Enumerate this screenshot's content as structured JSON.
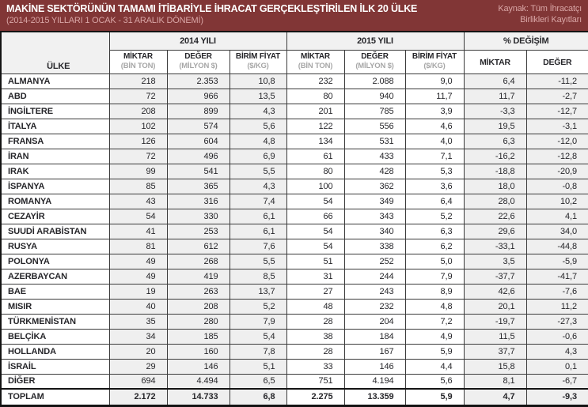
{
  "colors": {
    "banner_bg": "#813636",
    "banner_text": "#ffffff",
    "banner_muted": "#d9a6a6",
    "shaded_column_bg": "#efefef",
    "group_header_bg": "#f1f1f1",
    "border": "#3b3b3b",
    "text": "#26262a",
    "unit_text": "#a7a7a7"
  },
  "banner": {
    "title": "MAKİNE SEKTÖRÜNÜN TAMAMI İTİBARİYLE İHRACAT GERÇEKLEŞTİRİLEN İLK 20 ÜLKE",
    "subtitle": "(2014-2015 YILLARI 1 OCAK - 31 ARALIK DÖNEMİ)",
    "source_line1": "Kaynak: Tüm İhracatçı",
    "source_line2": "Birlikleri Kayıtları"
  },
  "table": {
    "country_header": "ÜLKE",
    "group_headers": [
      "2014 YILI",
      "2015 YILI",
      "% DEĞİŞİM"
    ],
    "sub_headers": [
      {
        "label": "MİKTAR",
        "unit": "(BİN TON)"
      },
      {
        "label": "DEĞER",
        "unit": "(MİLYON $)"
      },
      {
        "label": "BİRİM FİYAT",
        "unit": "($/KG)"
      }
    ],
    "pct_sub_headers": [
      "MİKTAR",
      "DEĞER"
    ],
    "rows": [
      [
        "ALMANYA",
        "218",
        "2.353",
        "10,8",
        "232",
        "2.088",
        "9,0",
        "6,4",
        "-11,2"
      ],
      [
        "ABD",
        "72",
        "966",
        "13,5",
        "80",
        "940",
        "11,7",
        "11,7",
        "-2,7"
      ],
      [
        "İNGİLTERE",
        "208",
        "899",
        "4,3",
        "201",
        "785",
        "3,9",
        "-3,3",
        "-12,7"
      ],
      [
        "İTALYA",
        "102",
        "574",
        "5,6",
        "122",
        "556",
        "4,6",
        "19,5",
        "-3,1"
      ],
      [
        "FRANSA",
        "126",
        "604",
        "4,8",
        "134",
        "531",
        "4,0",
        "6,3",
        "-12,0"
      ],
      [
        "İRAN",
        "72",
        "496",
        "6,9",
        "61",
        "433",
        "7,1",
        "-16,2",
        "-12,8"
      ],
      [
        "IRAK",
        "99",
        "541",
        "5,5",
        "80",
        "428",
        "5,3",
        "-18,8",
        "-20,9"
      ],
      [
        "İSPANYA",
        "85",
        "365",
        "4,3",
        "100",
        "362",
        "3,6",
        "18,0",
        "-0,8"
      ],
      [
        "ROMANYA",
        "43",
        "316",
        "7,4",
        "54",
        "349",
        "6,4",
        "28,0",
        "10,2"
      ],
      [
        "CEZAYİR",
        "54",
        "330",
        "6,1",
        "66",
        "343",
        "5,2",
        "22,6",
        "4,1"
      ],
      [
        "SUUDİ ARABİSTAN",
        "41",
        "253",
        "6,1",
        "54",
        "340",
        "6,3",
        "29,6",
        "34,0"
      ],
      [
        "RUSYA",
        "81",
        "612",
        "7,6",
        "54",
        "338",
        "6,2",
        "-33,1",
        "-44,8"
      ],
      [
        "POLONYA",
        "49",
        "268",
        "5,5",
        "51",
        "252",
        "5,0",
        "3,5",
        "-5,9"
      ],
      [
        "AZERBAYCAN",
        "49",
        "419",
        "8,5",
        "31",
        "244",
        "7,9",
        "-37,7",
        "-41,7"
      ],
      [
        "BAE",
        "19",
        "263",
        "13,7",
        "27",
        "243",
        "8,9",
        "42,6",
        "-7,6"
      ],
      [
        "MISIR",
        "40",
        "208",
        "5,2",
        "48",
        "232",
        "4,8",
        "20,1",
        "11,2"
      ],
      [
        "TÜRKMENİSTAN",
        "35",
        "280",
        "7,9",
        "28",
        "204",
        "7,2",
        "-19,7",
        "-27,3"
      ],
      [
        "BELÇİKA",
        "34",
        "185",
        "5,4",
        "38",
        "184",
        "4,9",
        "11,5",
        "-0,6"
      ],
      [
        "HOLLANDA",
        "20",
        "160",
        "7,8",
        "28",
        "167",
        "5,9",
        "37,7",
        "4,3"
      ],
      [
        "İSRAİL",
        "29",
        "146",
        "5,1",
        "33",
        "146",
        "4,4",
        "15,8",
        "0,1"
      ],
      [
        "DİĞER",
        "694",
        "4.494",
        "6,5",
        "751",
        "4.194",
        "5,6",
        "8,1",
        "-6,7"
      ]
    ],
    "total_row": [
      "TOPLAM",
      "2.172",
      "14.733",
      "6,8",
      "2.275",
      "13.359",
      "5,9",
      "4,7",
      "-9,3"
    ]
  },
  "chart_data": {
    "type": "table",
    "title": "MAKİNE SEKTÖRÜNÜN TAMAMI İTİBARİYLE İHRACAT GERÇEKLEŞTİRİLEN İLK 20 ÜLKE (2014-2015 YILLARI 1 OCAK - 31 ARALIK DÖNEMİ)",
    "source": "Kaynak: Tüm İhracatçı Birlikleri Kayıtları",
    "columns": [
      "ÜLKE",
      "2014 MİKTAR (BİN TON)",
      "2014 DEĞER (MİLYON $)",
      "2014 BİRİM FİYAT ($/KG)",
      "2015 MİKTAR (BİN TON)",
      "2015 DEĞER (MİLYON $)",
      "2015 BİRİM FİYAT ($/KG)",
      "% DEĞİŞİM MİKTAR",
      "% DEĞİŞİM DEĞER"
    ],
    "rows": [
      [
        "ALMANYA",
        218,
        2353,
        10.8,
        232,
        2088,
        9.0,
        6.4,
        -11.2
      ],
      [
        "ABD",
        72,
        966,
        13.5,
        80,
        940,
        11.7,
        11.7,
        -2.7
      ],
      [
        "İNGİLTERE",
        208,
        899,
        4.3,
        201,
        785,
        3.9,
        -3.3,
        -12.7
      ],
      [
        "İTALYA",
        102,
        574,
        5.6,
        122,
        556,
        4.6,
        19.5,
        -3.1
      ],
      [
        "FRANSA",
        126,
        604,
        4.8,
        134,
        531,
        4.0,
        6.3,
        -12.0
      ],
      [
        "İRAN",
        72,
        496,
        6.9,
        61,
        433,
        7.1,
        -16.2,
        -12.8
      ],
      [
        "IRAK",
        99,
        541,
        5.5,
        80,
        428,
        5.3,
        -18.8,
        -20.9
      ],
      [
        "İSPANYA",
        85,
        365,
        4.3,
        100,
        362,
        3.6,
        18.0,
        -0.8
      ],
      [
        "ROMANYA",
        43,
        316,
        7.4,
        54,
        349,
        6.4,
        28.0,
        10.2
      ],
      [
        "CEZAYİR",
        54,
        330,
        6.1,
        66,
        343,
        5.2,
        22.6,
        4.1
      ],
      [
        "SUUDİ ARABİSTAN",
        41,
        253,
        6.1,
        54,
        340,
        6.3,
        29.6,
        34.0
      ],
      [
        "RUSYA",
        81,
        612,
        7.6,
        54,
        338,
        6.2,
        -33.1,
        -44.8
      ],
      [
        "POLONYA",
        49,
        268,
        5.5,
        51,
        252,
        5.0,
        3.5,
        -5.9
      ],
      [
        "AZERBAYCAN",
        49,
        419,
        8.5,
        31,
        244,
        7.9,
        -37.7,
        -41.7
      ],
      [
        "BAE",
        19,
        263,
        13.7,
        27,
        243,
        8.9,
        42.6,
        -7.6
      ],
      [
        "MISIR",
        40,
        208,
        5.2,
        48,
        232,
        4.8,
        20.1,
        11.2
      ],
      [
        "TÜRKMENİSTAN",
        35,
        280,
        7.9,
        28,
        204,
        7.2,
        -19.7,
        -27.3
      ],
      [
        "BELÇİKA",
        34,
        185,
        5.4,
        38,
        184,
        4.9,
        11.5,
        -0.6
      ],
      [
        "HOLLANDA",
        20,
        160,
        7.8,
        28,
        167,
        5.9,
        37.7,
        4.3
      ],
      [
        "İSRAİL",
        29,
        146,
        5.1,
        33,
        146,
        4.4,
        15.8,
        0.1
      ],
      [
        "DİĞER",
        694,
        4494,
        6.5,
        751,
        4194,
        5.6,
        8.1,
        -6.7
      ]
    ],
    "total": [
      "TOPLAM",
      2172,
      14733,
      6.8,
      2275,
      13359,
      5.9,
      4.7,
      -9.3
    ]
  }
}
